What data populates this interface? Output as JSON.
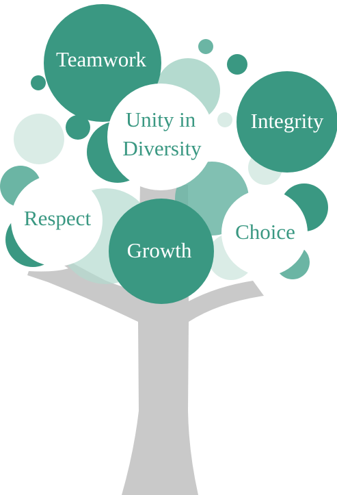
{
  "colors": {
    "teal": "#3a9882",
    "teal_mid": "#6bb5a4",
    "teal_light": "#b4dacf",
    "teal_pale": "#daece6",
    "white": "#ffffff",
    "trunk": "#c9c9c9"
  },
  "values": {
    "teamwork": "Teamwork",
    "unity_line1": "Unity in",
    "unity_line2": "Diversity",
    "integrity": "Integrity",
    "respect": "Respect",
    "growth": "Growth",
    "choice": "Choice"
  }
}
